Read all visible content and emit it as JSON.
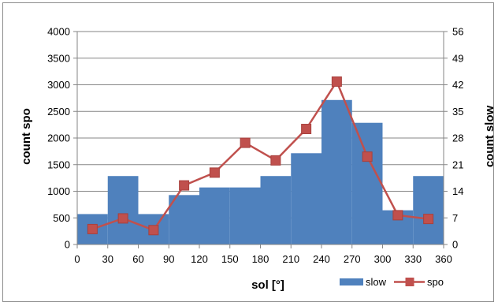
{
  "chart_data": {
    "type": "bar",
    "title": "",
    "xlabel": "sol [°]",
    "ylabel_left": "count spo",
    "ylabel_right": "count slow",
    "x_ticks": [
      0,
      30,
      60,
      90,
      120,
      150,
      180,
      210,
      240,
      270,
      300,
      330,
      360
    ],
    "xlim": [
      0,
      360
    ],
    "y_left_ticks": [
      0,
      500,
      1000,
      1500,
      2000,
      2500,
      3000,
      3500,
      4000
    ],
    "ylim_left": [
      0,
      4000
    ],
    "y_right_ticks": [
      0,
      7,
      14,
      21,
      28,
      35,
      42,
      49,
      56
    ],
    "ylim_right": [
      0,
      56
    ],
    "grid": true,
    "legend_position": "bottom-right",
    "bin_edges": [
      0,
      30,
      60,
      90,
      120,
      150,
      180,
      210,
      240,
      270,
      300,
      330,
      360
    ],
    "series": [
      {
        "name": "slow",
        "kind": "bar",
        "axis": "right",
        "color": "#4f81bd",
        "values": [
          8,
          18,
          8,
          13,
          15,
          15,
          18,
          24,
          38,
          32,
          9,
          18
        ]
      },
      {
        "name": "spo",
        "kind": "line",
        "axis": "left",
        "color": "#c0504d",
        "x": [
          15,
          45,
          75,
          105,
          135,
          165,
          195,
          225,
          255,
          285,
          315,
          345
        ],
        "values": [
          290,
          490,
          270,
          1110,
          1350,
          1910,
          1580,
          2170,
          3060,
          1650,
          550,
          480
        ]
      }
    ]
  }
}
